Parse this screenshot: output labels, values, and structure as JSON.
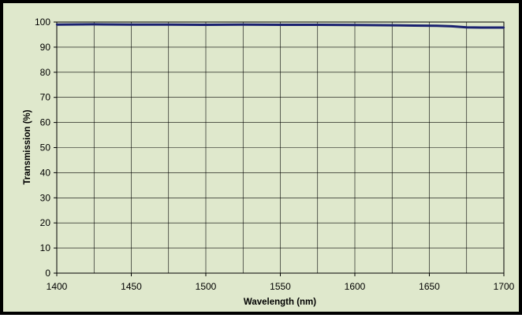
{
  "chart_data": {
    "type": "line",
    "title": "",
    "xlabel": "Wavelength (nm)",
    "ylabel": "Transmission (%)",
    "xlim": [
      1400,
      1700
    ],
    "ylim": [
      0,
      100
    ],
    "x_ticks": [
      1400,
      1450,
      1500,
      1550,
      1600,
      1650,
      1700
    ],
    "y_ticks": [
      0,
      10,
      20,
      30,
      40,
      50,
      60,
      70,
      80,
      90,
      100
    ],
    "grid": true,
    "legend": "none",
    "series": [
      {
        "color": "#1a2170",
        "x": [
          1400,
          1425,
          1450,
          1475,
          1500,
          1525,
          1550,
          1575,
          1600,
          1625,
          1640,
          1655,
          1665,
          1675,
          1685,
          1700
        ],
        "y": [
          99.0,
          99.1,
          99.0,
          99.0,
          98.9,
          99.0,
          98.9,
          98.9,
          98.8,
          98.7,
          98.6,
          98.5,
          98.3,
          97.9,
          97.8,
          97.8
        ]
      }
    ]
  }
}
